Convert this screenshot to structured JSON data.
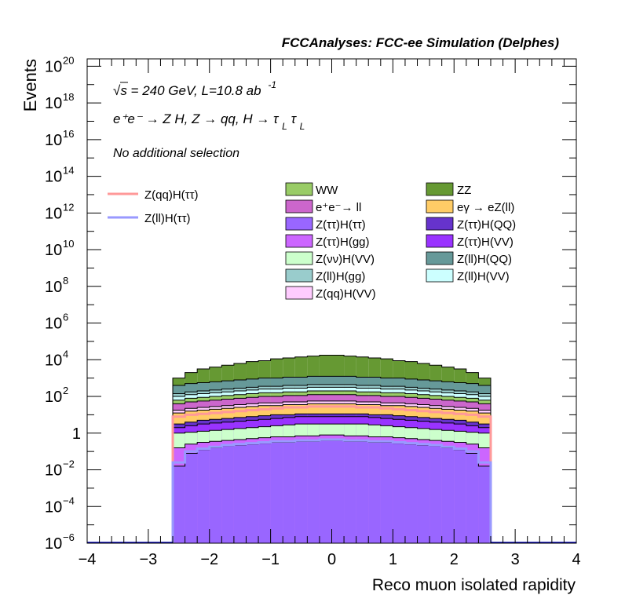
{
  "chart_data": {
    "type": "bar",
    "title": "FCCAnalyses: FCC-ee Simulation (Delphes)",
    "xlabel": "Reco muon isolated rapidity",
    "ylabel": "Events",
    "xlim": [
      -4,
      4
    ],
    "ylim_log10": [
      -6,
      20.4
    ],
    "log_y": true,
    "x_ticks": [
      "−4",
      "−3",
      "−2",
      "−1",
      "0",
      "1",
      "2",
      "3",
      "4"
    ],
    "y_ticks": [
      {
        "base": "10",
        "exp": "20",
        "p": 20
      },
      {
        "base": "10",
        "exp": "18",
        "p": 18
      },
      {
        "base": "10",
        "exp": "16",
        "p": 16
      },
      {
        "base": "10",
        "exp": "14",
        "p": 14
      },
      {
        "base": "10",
        "exp": "12",
        "p": 12
      },
      {
        "base": "10",
        "exp": "10",
        "p": 10
      },
      {
        "base": "10",
        "exp": "8",
        "p": 8
      },
      {
        "base": "10",
        "exp": "6",
        "p": 6
      },
      {
        "base": "10",
        "exp": "4",
        "p": 4
      },
      {
        "base": "10",
        "exp": "2",
        "p": 2
      },
      {
        "base": "1",
        "exp": "",
        "p": 0
      },
      {
        "base": "10",
        "exp": "−2",
        "p": -2
      },
      {
        "base": "10",
        "exp": "−4",
        "p": -4
      },
      {
        "base": "10",
        "exp": "−6",
        "p": -6
      }
    ],
    "annotations": {
      "energy": "√s = 240 GeV, L=10.8 ab",
      "energy_sup": "-1",
      "process": "e⁺e⁻ → Z H, Z → qq, H → τ",
      "process_sub1": "L",
      "process_tau2": "τ",
      "process_sub2": "L",
      "selection": "No additional selection"
    },
    "bin_edges": [
      -2.6,
      -2.4,
      -2.2,
      -2.0,
      -1.8,
      -1.6,
      -1.4,
      -1.2,
      -1.0,
      -0.8,
      -0.6,
      -0.4,
      -0.2,
      0.0,
      0.2,
      0.4,
      0.6,
      0.8,
      1.0,
      1.2,
      1.4,
      1.6,
      1.8,
      2.0,
      2.2,
      2.4,
      2.6
    ],
    "stack_order": "bottom-to-top",
    "stack_log10_tops": [
      {
        "name": "Z(ττ)H(ττ)",
        "color": "#9966ff",
        "values": [
          -1.8,
          -1.1,
          -0.9,
          -0.8,
          -0.7,
          -0.65,
          -0.6,
          -0.55,
          -0.5,
          -0.5,
          -0.45,
          -0.45,
          -0.4,
          -0.4,
          -0.45,
          -0.45,
          -0.5,
          -0.5,
          -0.55,
          -0.6,
          -0.65,
          -0.7,
          -0.8,
          -0.9,
          -1.1,
          -1.8
        ]
      },
      {
        "name": "Z(ττ)H(gg)",
        "color": "#cc66ff",
        "values": [
          -0.8,
          -0.6,
          -0.5,
          -0.45,
          -0.4,
          -0.35,
          -0.3,
          -0.25,
          -0.2,
          -0.2,
          -0.15,
          -0.15,
          -0.1,
          -0.1,
          -0.15,
          -0.15,
          -0.2,
          -0.2,
          -0.25,
          -0.3,
          -0.35,
          -0.4,
          -0.45,
          -0.5,
          -0.6,
          -0.8
        ]
      },
      {
        "name": "Z(νν)H(VV)",
        "color": "#ccffcc",
        "values": [
          0.0,
          0.05,
          0.1,
          0.15,
          0.2,
          0.25,
          0.3,
          0.35,
          0.4,
          0.45,
          0.5,
          0.5,
          0.5,
          0.5,
          0.5,
          0.5,
          0.45,
          0.4,
          0.35,
          0.3,
          0.25,
          0.2,
          0.15,
          0.1,
          0.05,
          0.0
        ]
      },
      {
        "name": "Z(ττ)H(VV)",
        "color": "#9933ff",
        "values": [
          0.3,
          0.4,
          0.5,
          0.55,
          0.6,
          0.65,
          0.7,
          0.75,
          0.8,
          0.85,
          0.9,
          0.9,
          0.9,
          0.9,
          0.9,
          0.9,
          0.85,
          0.8,
          0.75,
          0.7,
          0.65,
          0.6,
          0.55,
          0.5,
          0.4,
          0.3
        ]
      },
      {
        "name": "Z(ττ)H(QQ)",
        "color": "#6633cc",
        "values": [
          0.5,
          0.6,
          0.7,
          0.75,
          0.8,
          0.85,
          0.9,
          0.95,
          1.0,
          1.0,
          1.05,
          1.05,
          1.05,
          1.05,
          1.05,
          1.05,
          1.0,
          1.0,
          0.95,
          0.9,
          0.85,
          0.8,
          0.75,
          0.7,
          0.6,
          0.5
        ]
      },
      {
        "name": "eγ → eZ(ll)",
        "color": "#ffcc66",
        "values": [
          1.1,
          1.2,
          1.25,
          1.3,
          1.35,
          1.4,
          1.45,
          1.5,
          1.5,
          1.55,
          1.55,
          1.6,
          1.6,
          1.6,
          1.6,
          1.55,
          1.55,
          1.5,
          1.5,
          1.45,
          1.4,
          1.35,
          1.3,
          1.25,
          1.2,
          1.1
        ]
      },
      {
        "name": "Z(qq)H(VV)",
        "color": "#ffccff",
        "values": [
          1.25,
          1.35,
          1.4,
          1.45,
          1.5,
          1.55,
          1.6,
          1.65,
          1.65,
          1.7,
          1.7,
          1.75,
          1.75,
          1.75,
          1.75,
          1.7,
          1.7,
          1.65,
          1.65,
          1.6,
          1.55,
          1.5,
          1.45,
          1.4,
          1.35,
          1.25
        ]
      },
      {
        "name": "e⁺e⁻→ ll",
        "color": "#cc66cc",
        "values": [
          1.6,
          1.7,
          1.75,
          1.8,
          1.85,
          1.9,
          1.95,
          2.0,
          2.0,
          2.05,
          2.05,
          2.1,
          2.1,
          2.1,
          2.1,
          2.05,
          2.05,
          2.0,
          2.0,
          1.95,
          1.9,
          1.85,
          1.8,
          1.75,
          1.7,
          1.6
        ]
      },
      {
        "name": "WW",
        "color": "#99cc66",
        "values": [
          1.8,
          1.9,
          1.95,
          2.0,
          2.05,
          2.1,
          2.15,
          2.2,
          2.2,
          2.25,
          2.25,
          2.3,
          2.3,
          2.3,
          2.3,
          2.25,
          2.25,
          2.2,
          2.2,
          2.15,
          2.1,
          2.05,
          2.0,
          1.95,
          1.9,
          1.8
        ]
      },
      {
        "name": "Z(ll)H(VV)",
        "color": "#ccffff",
        "values": [
          2.0,
          2.1,
          2.15,
          2.2,
          2.25,
          2.3,
          2.35,
          2.4,
          2.4,
          2.45,
          2.45,
          2.5,
          2.5,
          2.5,
          2.5,
          2.45,
          2.45,
          2.4,
          2.4,
          2.35,
          2.3,
          2.25,
          2.2,
          2.15,
          2.1,
          2.0
        ]
      },
      {
        "name": "Z(ll)H(gg)",
        "color": "#99cccc",
        "values": [
          2.15,
          2.25,
          2.3,
          2.35,
          2.4,
          2.45,
          2.5,
          2.55,
          2.55,
          2.6,
          2.6,
          2.65,
          2.65,
          2.65,
          2.65,
          2.6,
          2.6,
          2.55,
          2.55,
          2.5,
          2.45,
          2.4,
          2.35,
          2.3,
          2.25,
          2.15
        ]
      },
      {
        "name": "Z(ll)H(QQ)",
        "color": "#669999",
        "values": [
          2.6,
          2.7,
          2.75,
          2.8,
          2.85,
          2.9,
          2.95,
          3.0,
          3.0,
          3.05,
          3.05,
          3.1,
          3.1,
          3.1,
          3.1,
          3.05,
          3.05,
          3.0,
          3.0,
          2.95,
          2.9,
          2.85,
          2.8,
          2.75,
          2.7,
          2.6
        ]
      },
      {
        "name": "ZZ",
        "color": "#669933",
        "values": [
          3.0,
          3.3,
          3.5,
          3.6,
          3.7,
          3.8,
          3.9,
          3.95,
          4.05,
          4.1,
          4.15,
          4.2,
          4.25,
          4.25,
          4.2,
          4.15,
          4.1,
          4.05,
          3.95,
          3.9,
          3.8,
          3.7,
          3.6,
          3.5,
          3.3,
          3.0
        ]
      }
    ],
    "signal_lines": [
      {
        "name": "Z(qq)H(ττ)",
        "color": "#ff9999",
        "values": [
          0.9,
          1.0,
          1.05,
          1.1,
          1.15,
          1.2,
          1.25,
          1.3,
          1.35,
          1.4,
          1.4,
          1.45,
          1.45,
          1.45,
          1.45,
          1.4,
          1.4,
          1.35,
          1.3,
          1.25,
          1.2,
          1.15,
          1.1,
          1.05,
          1.0,
          0.9
        ]
      },
      {
        "name": "Z(ll)H(ττ)",
        "color": "#9999ff",
        "values": [
          -1.6,
          -1.0,
          -0.85,
          -0.75,
          -0.65,
          -0.6,
          -0.55,
          -0.5,
          -0.45,
          -0.45,
          -0.4,
          -0.4,
          -0.35,
          -0.35,
          -0.4,
          -0.4,
          -0.45,
          -0.45,
          -0.5,
          -0.55,
          -0.6,
          -0.65,
          -0.75,
          -0.85,
          -1.0,
          -1.6
        ]
      }
    ],
    "legend_left": [
      {
        "name": "Z(qq)H(ττ)",
        "color": "#ff9999"
      },
      {
        "name": "Z(ll)H(ττ)",
        "color": "#9999ff"
      }
    ],
    "legend_col1": [
      {
        "name": "WW",
        "color": "#99cc66"
      },
      {
        "name": "e⁺e⁻→ ll",
        "color": "#cc66cc"
      },
      {
        "name": "Z(ττ)H(ττ)",
        "color": "#9966ff"
      },
      {
        "name": "Z(ττ)H(gg)",
        "color": "#cc66ff"
      },
      {
        "name": "Z(νν)H(VV)",
        "color": "#ccffcc"
      },
      {
        "name": "Z(ll)H(gg)",
        "color": "#99cccc"
      },
      {
        "name": "Z(qq)H(VV)",
        "color": "#ffccff"
      }
    ],
    "legend_col2": [
      {
        "name": "ZZ",
        "color": "#669933"
      },
      {
        "name": "eγ → eZ(ll)",
        "color": "#ffcc66"
      },
      {
        "name": "Z(ττ)H(QQ)",
        "color": "#6633cc"
      },
      {
        "name": "Z(ττ)H(VV)",
        "color": "#9933ff"
      },
      {
        "name": "Z(ll)H(QQ)",
        "color": "#669999"
      },
      {
        "name": "Z(ll)H(VV)",
        "color": "#ccffff"
      }
    ]
  }
}
